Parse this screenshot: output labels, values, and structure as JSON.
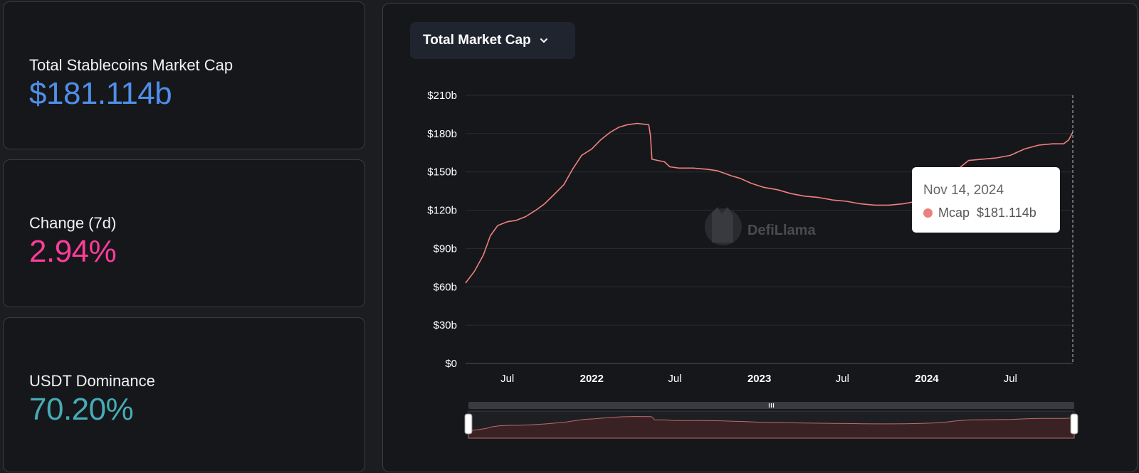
{
  "stats": {
    "mcap": {
      "label": "Total Stablecoins Market Cap",
      "value": "$181.114b",
      "color": "#4f8fea"
    },
    "change": {
      "label": "Change (7d)",
      "value": "2.94%",
      "color": "#fd3c99"
    },
    "dominance": {
      "label": "USDT Dominance",
      "value": "70.20%",
      "color": "#46acb7"
    }
  },
  "selector": {
    "label": "Total Market Cap",
    "icon": "chevron-down-icon"
  },
  "watermark": {
    "text": "DefiLlama"
  },
  "tooltip": {
    "date": "Nov 14, 2024",
    "series": "Mcap",
    "value": "$181.114b"
  },
  "colors": {
    "line": "#f08080",
    "brush_fill": "#3a2224",
    "dot": "#e98181"
  },
  "chart_data": {
    "type": "line",
    "xaxis": {
      "range": [
        "2021-04-01",
        "2024-11-14"
      ],
      "ticks": [
        {
          "date": "2021-07-01",
          "label": "Jul",
          "bold": false
        },
        {
          "date": "2022-01-01",
          "label": "2022",
          "bold": true
        },
        {
          "date": "2022-07-01",
          "label": "Jul",
          "bold": false
        },
        {
          "date": "2023-01-01",
          "label": "2023",
          "bold": true
        },
        {
          "date": "2023-07-01",
          "label": "Jul",
          "bold": false
        },
        {
          "date": "2024-01-01",
          "label": "2024",
          "bold": true
        },
        {
          "date": "2024-07-01",
          "label": "Jul",
          "bold": false
        }
      ]
    },
    "ylim": [
      0,
      210
    ],
    "yticks": [
      {
        "v": 0,
        "label": "$0"
      },
      {
        "v": 30,
        "label": "$30b"
      },
      {
        "v": 60,
        "label": "$60b"
      },
      {
        "v": 90,
        "label": "$90b"
      },
      {
        "v": 120,
        "label": "$120b"
      },
      {
        "v": 150,
        "label": "$150b"
      },
      {
        "v": 180,
        "label": "$180b"
      },
      {
        "v": 210,
        "label": "$210b"
      }
    ],
    "grid": true,
    "series": [
      {
        "name": "Mcap",
        "points": [
          [
            "2021-04-01",
            63
          ],
          [
            "2021-04-20",
            72
          ],
          [
            "2021-05-10",
            85
          ],
          [
            "2021-05-25",
            100
          ],
          [
            "2021-06-10",
            108
          ],
          [
            "2021-07-01",
            111
          ],
          [
            "2021-07-20",
            112
          ],
          [
            "2021-08-10",
            115
          ],
          [
            "2021-09-01",
            120
          ],
          [
            "2021-09-20",
            125
          ],
          [
            "2021-10-10",
            132
          ],
          [
            "2021-11-01",
            140
          ],
          [
            "2021-11-20",
            152
          ],
          [
            "2021-12-10",
            163
          ],
          [
            "2022-01-01",
            168
          ],
          [
            "2022-01-20",
            175
          ],
          [
            "2022-02-10",
            181
          ],
          [
            "2022-03-01",
            185
          ],
          [
            "2022-03-20",
            187
          ],
          [
            "2022-04-10",
            188
          ],
          [
            "2022-05-05",
            187
          ],
          [
            "2022-05-09",
            178
          ],
          [
            "2022-05-12",
            160
          ],
          [
            "2022-05-25",
            159
          ],
          [
            "2022-06-08",
            158
          ],
          [
            "2022-06-20",
            154
          ],
          [
            "2022-07-10",
            153
          ],
          [
            "2022-08-10",
            153
          ],
          [
            "2022-09-10",
            152
          ],
          [
            "2022-10-01",
            151
          ],
          [
            "2022-11-01",
            147
          ],
          [
            "2022-11-20",
            145
          ],
          [
            "2022-12-15",
            141
          ],
          [
            "2023-01-10",
            138
          ],
          [
            "2023-02-10",
            136
          ],
          [
            "2023-03-11",
            133
          ],
          [
            "2023-04-10",
            131
          ],
          [
            "2023-05-10",
            130
          ],
          [
            "2023-06-10",
            128
          ],
          [
            "2023-07-10",
            127
          ],
          [
            "2023-08-10",
            125
          ],
          [
            "2023-09-10",
            124
          ],
          [
            "2023-10-10",
            124
          ],
          [
            "2023-11-10",
            125
          ],
          [
            "2023-12-10",
            127
          ],
          [
            "2024-01-10",
            131
          ],
          [
            "2024-02-10",
            140
          ],
          [
            "2024-03-01",
            150
          ],
          [
            "2024-04-01",
            159
          ],
          [
            "2024-05-01",
            160
          ],
          [
            "2024-06-01",
            161
          ],
          [
            "2024-07-01",
            163
          ],
          [
            "2024-08-01",
            168
          ],
          [
            "2024-09-01",
            171
          ],
          [
            "2024-10-01",
            172
          ],
          [
            "2024-10-25",
            172
          ],
          [
            "2024-11-05",
            175
          ],
          [
            "2024-11-14",
            181.114
          ]
        ]
      }
    ]
  }
}
